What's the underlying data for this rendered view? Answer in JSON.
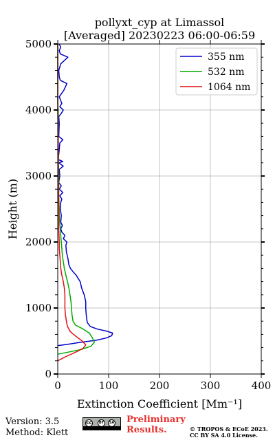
{
  "chart_data": {
    "type": "line",
    "title": "pollyxt_cyp at Limassol",
    "subtitle": "[Averaged] 20230223 06:00-06:59",
    "xlabel": "Extinction Coefficient [Mm⁻¹]",
    "ylabel": "Height (m)",
    "xlim": [
      0,
      400
    ],
    "ylim": [
      0,
      5000
    ],
    "x_ticks": [
      0,
      100,
      200,
      300,
      400
    ],
    "y_ticks": [
      0,
      1000,
      2000,
      3000,
      4000,
      5000
    ],
    "grid": true,
    "legend_position": "top-right",
    "series": [
      {
        "name": "355 nm",
        "color": "#0000cc",
        "points": [
          [
            0,
            430
          ],
          [
            20,
            450
          ],
          [
            45,
            480
          ],
          [
            75,
            510
          ],
          [
            95,
            545
          ],
          [
            106,
            580
          ],
          [
            108,
            620
          ],
          [
            96,
            650
          ],
          [
            78,
            680
          ],
          [
            64,
            720
          ],
          [
            58,
            780
          ],
          [
            56,
            900
          ],
          [
            55,
            1000
          ],
          [
            55,
            1100
          ],
          [
            52,
            1200
          ],
          [
            47,
            1300
          ],
          [
            44,
            1400
          ],
          [
            40,
            1450
          ],
          [
            36,
            1500
          ],
          [
            30,
            1550
          ],
          [
            25,
            1600
          ],
          [
            22,
            1650
          ],
          [
            20,
            1750
          ],
          [
            17,
            1850
          ],
          [
            16,
            1950
          ],
          [
            18,
            2000
          ],
          [
            11,
            2050
          ],
          [
            14,
            2100
          ],
          [
            8,
            2150
          ],
          [
            6,
            2200
          ],
          [
            9,
            2250
          ],
          [
            6,
            2300
          ],
          [
            7,
            2400
          ],
          [
            5,
            2500
          ],
          [
            6,
            2600
          ],
          [
            8,
            2650
          ],
          [
            4,
            2700
          ],
          [
            10,
            2750
          ],
          [
            3,
            2800
          ],
          [
            7,
            2850
          ],
          [
            2,
            2900
          ],
          [
            4,
            3000
          ],
          [
            3,
            3100
          ],
          [
            11,
            3150
          ],
          [
            2,
            3200
          ],
          [
            10,
            3220
          ],
          [
            1,
            3250
          ],
          [
            3,
            3400
          ],
          [
            4,
            3500
          ],
          [
            10,
            3550
          ],
          [
            2,
            3600
          ],
          [
            3,
            3800
          ],
          [
            2,
            3900
          ],
          [
            7,
            3950
          ],
          [
            11,
            4000
          ],
          [
            4,
            4050
          ],
          [
            8,
            4100
          ],
          [
            3,
            4200
          ],
          [
            12,
            4300
          ],
          [
            18,
            4400
          ],
          [
            5,
            4450
          ],
          [
            3,
            4500
          ],
          [
            2,
            4600
          ],
          [
            6,
            4700
          ],
          [
            20,
            4800
          ],
          [
            5,
            4850
          ],
          [
            3,
            4900
          ],
          [
            6,
            4950
          ],
          [
            3,
            5000
          ]
        ]
      },
      {
        "name": "532 nm",
        "color": "#00aa00",
        "points": [
          [
            0,
            300
          ],
          [
            20,
            330
          ],
          [
            45,
            370
          ],
          [
            65,
            420
          ],
          [
            72,
            480
          ],
          [
            68,
            550
          ],
          [
            62,
            620
          ],
          [
            48,
            690
          ],
          [
            35,
            740
          ],
          [
            30,
            800
          ],
          [
            28,
            900
          ],
          [
            27,
            1000
          ],
          [
            26,
            1100
          ],
          [
            24,
            1200
          ],
          [
            22,
            1300
          ],
          [
            19,
            1400
          ],
          [
            16,
            1500
          ],
          [
            13,
            1600
          ],
          [
            11,
            1700
          ],
          [
            9,
            1800
          ],
          [
            8,
            1900
          ],
          [
            7,
            2000
          ],
          [
            6,
            2100
          ],
          [
            5,
            2200
          ],
          [
            4,
            2300
          ],
          [
            3,
            2400
          ],
          [
            3,
            2500
          ],
          [
            2,
            2700
          ],
          [
            2,
            3000
          ],
          [
            1,
            3500
          ],
          [
            1,
            4000
          ],
          [
            0,
            4100
          ],
          [
            0,
            5000
          ]
        ]
      },
      {
        "name": "1064 nm",
        "color": "#dd1111",
        "points": [
          [
            0,
            200
          ],
          [
            15,
            260
          ],
          [
            35,
            330
          ],
          [
            50,
            390
          ],
          [
            55,
            440
          ],
          [
            48,
            500
          ],
          [
            36,
            570
          ],
          [
            25,
            640
          ],
          [
            19,
            720
          ],
          [
            17,
            800
          ],
          [
            15,
            900
          ],
          [
            14,
            1000
          ],
          [
            14,
            1100
          ],
          [
            14,
            1200
          ],
          [
            13,
            1300
          ],
          [
            11,
            1400
          ],
          [
            8,
            1500
          ],
          [
            6,
            1600
          ],
          [
            5,
            1700
          ],
          [
            4,
            1800
          ],
          [
            3,
            1900
          ],
          [
            3,
            2000
          ],
          [
            2,
            2200
          ],
          [
            2,
            2500
          ],
          [
            1,
            3000
          ],
          [
            1,
            3500
          ],
          [
            0,
            4000
          ],
          [
            0,
            5000
          ]
        ]
      }
    ]
  },
  "footer": {
    "version": "Version: 3.5",
    "method": "Method: Klett",
    "preliminary_line1": "Preliminary",
    "preliminary_line2": "Results.",
    "copyright_line1": "© TROPOS & ECoE 2023.",
    "copyright_line2": "CC BY SA 4.0 License."
  },
  "license_badge": {
    "icon_names": [
      "cc-icon",
      "by-icon",
      "sa-icon"
    ],
    "cc_text": "cc",
    "by_text": "BY",
    "sa_text": "SA"
  }
}
